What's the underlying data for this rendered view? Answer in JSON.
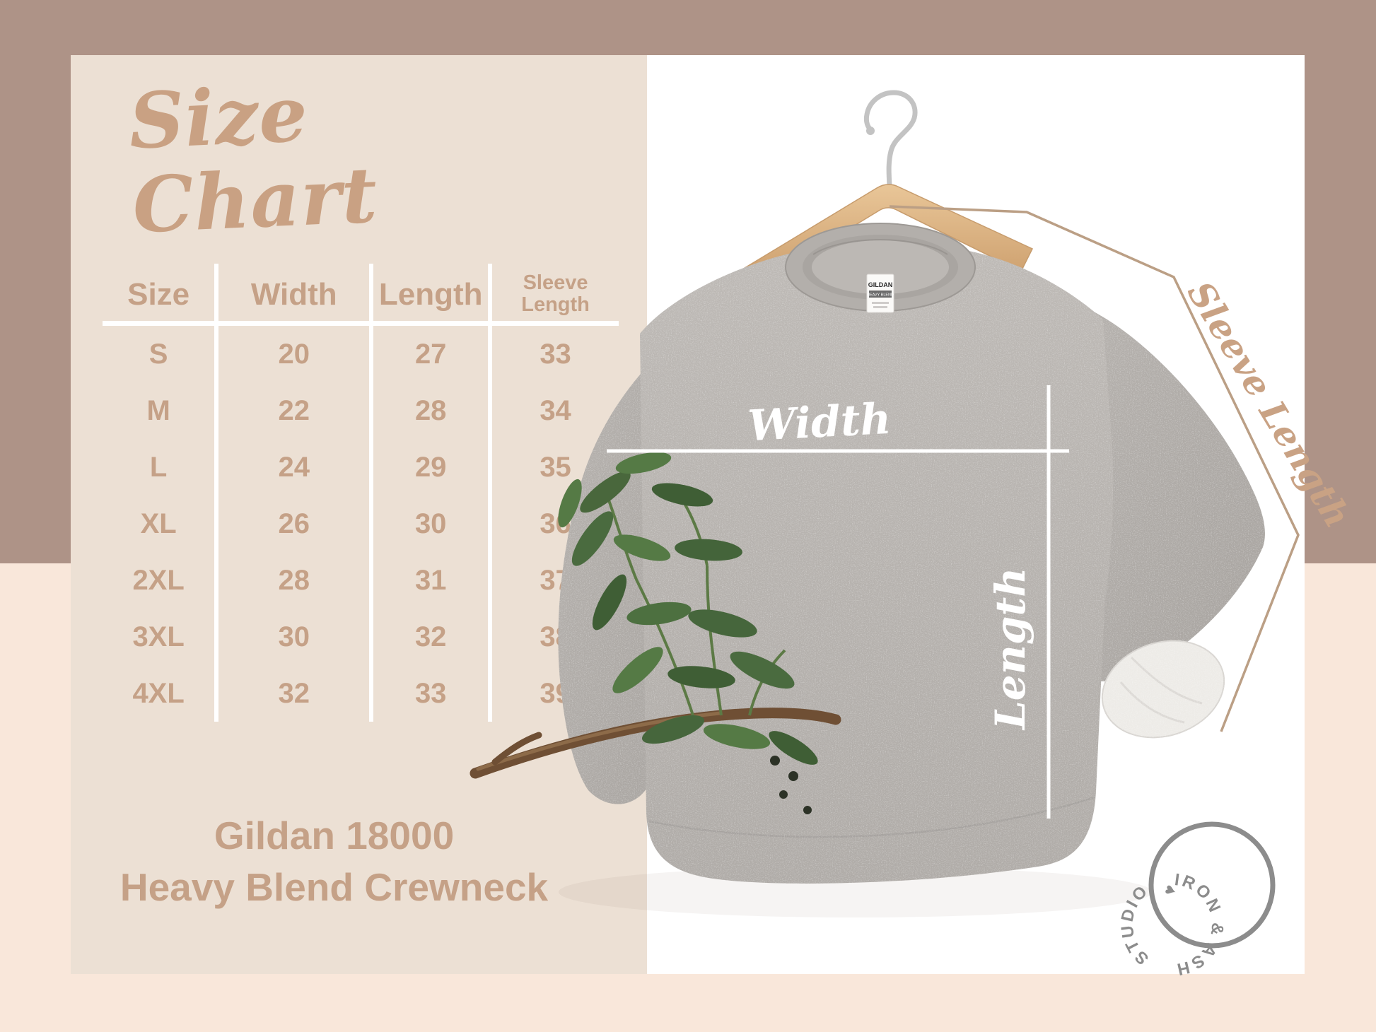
{
  "page": {
    "title": "Size Chart"
  },
  "chart_data": {
    "type": "table",
    "title": "Size Chart",
    "columns": [
      "Size",
      "Width",
      "Length",
      "Sleeve Length"
    ],
    "rows": [
      [
        "S",
        20,
        27,
        33
      ],
      [
        "M",
        22,
        28,
        34
      ],
      [
        "L",
        24,
        29,
        35
      ],
      [
        "XL",
        26,
        30,
        36
      ],
      [
        "2XL",
        28,
        31,
        37
      ],
      [
        "3XL",
        30,
        32,
        38
      ],
      [
        "4XL",
        32,
        33,
        39
      ]
    ],
    "subtitle": "Gildan 18000 Heavy Blend Crewneck"
  },
  "footer": {
    "line1": "Gildan 18000",
    "line2": "Heavy Blend Crewneck"
  },
  "photo": {
    "labels": {
      "width": "Width",
      "length": "Length",
      "sleeve_length": "Sleeve Length"
    },
    "hang_tag": {
      "brand": "GILDAN",
      "line2": "HEAVY BLEND"
    },
    "stamp": {
      "arc_top": "IRON & ASH",
      "arc_bottom": "STUDIO",
      "heart": "♥"
    }
  },
  "colors": {
    "background_top": "#ae9387",
    "background_bottom": "#f9e7da",
    "card": "#ece0d4",
    "panel": "#ffffff",
    "accent_tan": "#c5a187",
    "stamp_gray": "#8c8c8c",
    "sweatshirt_gray": "#b7b3af"
  }
}
